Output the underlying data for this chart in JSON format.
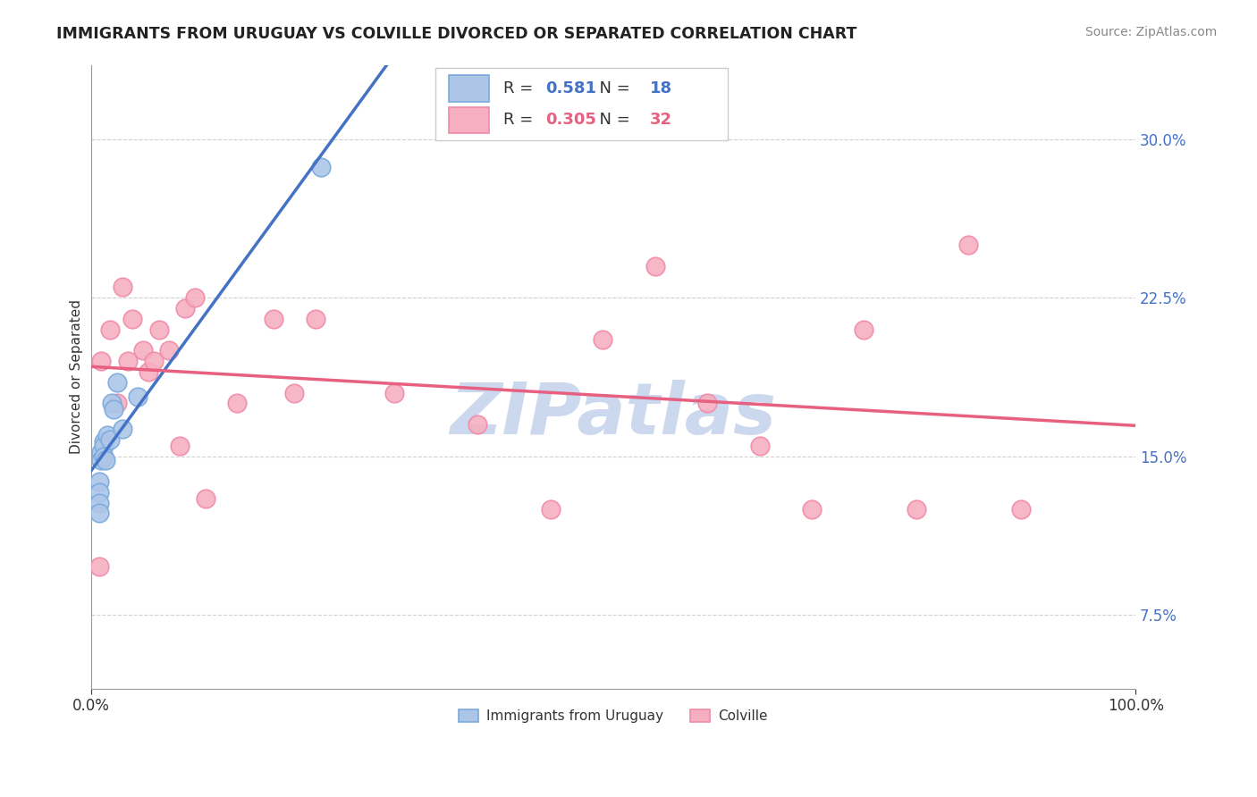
{
  "title": "IMMIGRANTS FROM URUGUAY VS COLVILLE DIVORCED OR SEPARATED CORRELATION CHART",
  "source_text": "Source: ZipAtlas.com",
  "ylabel": "Divorced or Separated",
  "legend_blue_r": "0.581",
  "legend_blue_n": "18",
  "legend_pink_r": "0.305",
  "legend_pink_n": "32",
  "legend_label_blue": "Immigrants from Uruguay",
  "legend_label_pink": "Colville",
  "ytick_labels": [
    "7.5%",
    "15.0%",
    "22.5%",
    "30.0%"
  ],
  "ytick_values": [
    0.075,
    0.15,
    0.225,
    0.3
  ],
  "xlim": [
    0.0,
    1.0
  ],
  "ylim": [
    0.04,
    0.335
  ],
  "blue_scatter_x": [
    0.008,
    0.008,
    0.008,
    0.008,
    0.01,
    0.01,
    0.012,
    0.012,
    0.012,
    0.014,
    0.016,
    0.018,
    0.02,
    0.022,
    0.025,
    0.03,
    0.22,
    0.045
  ],
  "blue_scatter_y": [
    0.138,
    0.133,
    0.128,
    0.123,
    0.152,
    0.148,
    0.157,
    0.155,
    0.15,
    0.148,
    0.16,
    0.158,
    0.175,
    0.172,
    0.185,
    0.163,
    0.287,
    0.178
  ],
  "pink_scatter_x": [
    0.008,
    0.01,
    0.018,
    0.025,
    0.03,
    0.035,
    0.04,
    0.05,
    0.055,
    0.06,
    0.065,
    0.075,
    0.085,
    0.09,
    0.1,
    0.11,
    0.14,
    0.175,
    0.195,
    0.215,
    0.29,
    0.37,
    0.44,
    0.49,
    0.54,
    0.59,
    0.64,
    0.69,
    0.74,
    0.79,
    0.84,
    0.89
  ],
  "pink_scatter_y": [
    0.098,
    0.195,
    0.21,
    0.175,
    0.23,
    0.195,
    0.215,
    0.2,
    0.19,
    0.195,
    0.21,
    0.2,
    0.155,
    0.22,
    0.225,
    0.13,
    0.175,
    0.215,
    0.18,
    0.215,
    0.18,
    0.165,
    0.125,
    0.205,
    0.24,
    0.175,
    0.155,
    0.125,
    0.21,
    0.125,
    0.25,
    0.125
  ],
  "blue_line_color": "#4472c4",
  "pink_line_color": "#e86080",
  "blue_scatter_facecolor": "#adc6e8",
  "pink_scatter_facecolor": "#f5afc0",
  "blue_scatter_edgecolor": "#7aaadd",
  "pink_scatter_edgecolor": "#f08aaa",
  "blue_dashed_color": "#b0b8c8",
  "grid_color": "#d0d0d0",
  "background_color": "#ffffff",
  "watermark_color": "#ccd8ee",
  "title_color": "#222222",
  "source_color": "#888888",
  "ytick_color": "#4472c4",
  "xtick_color": "#333333",
  "ylabel_color": "#333333"
}
